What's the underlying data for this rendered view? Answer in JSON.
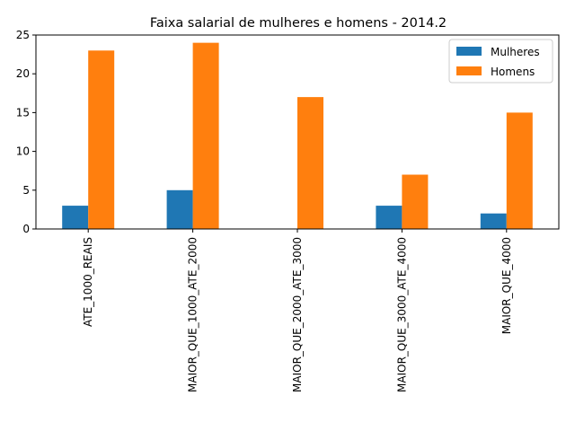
{
  "chart_data": {
    "type": "bar",
    "title": "Faixa salarial de mulheres e homens - 2014.2",
    "xlabel": "",
    "ylabel": "",
    "categories": [
      "ATE_1000_REAIS",
      "MAIOR_QUE_1000_ATE_2000",
      "MAIOR_QUE_2000_ATE_3000",
      "MAIOR_QUE_3000_ATE_4000",
      "MAIOR_QUE_4000"
    ],
    "series": [
      {
        "name": "Mulheres",
        "color": "#1f77b4",
        "values": [
          3,
          5,
          0,
          3,
          2
        ]
      },
      {
        "name": "Homens",
        "color": "#ff7f0e",
        "values": [
          23,
          24,
          17,
          7,
          15
        ]
      }
    ],
    "ylim": [
      0,
      25
    ],
    "yticks": [
      0,
      5,
      10,
      15,
      20,
      25
    ],
    "grid": false,
    "legend_position": "top-right"
  }
}
